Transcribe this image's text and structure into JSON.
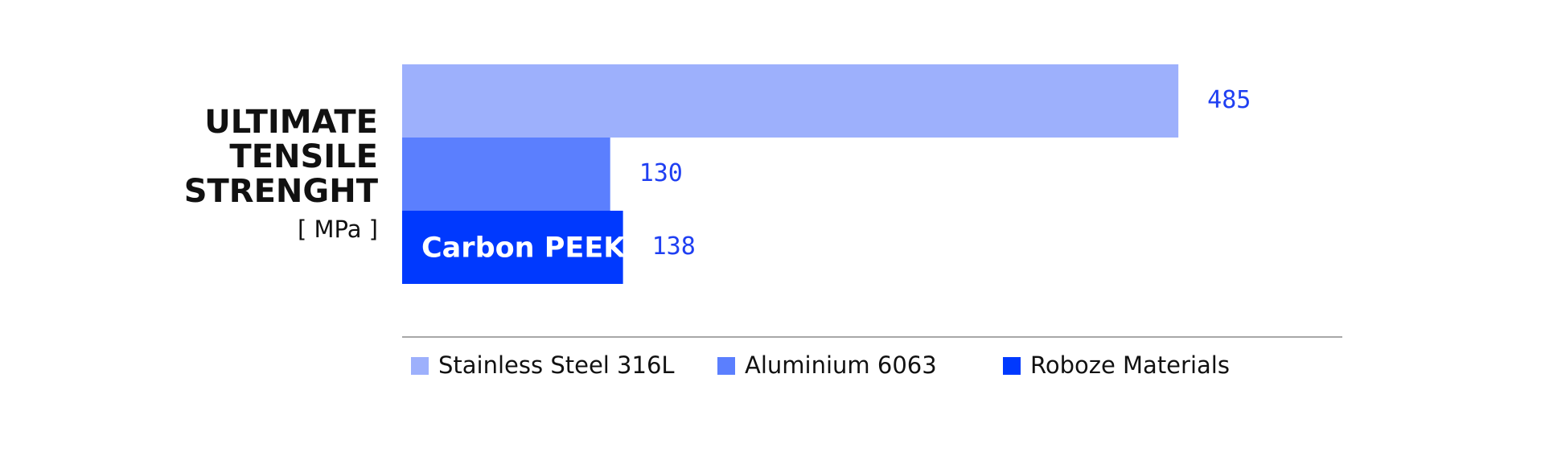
{
  "chart_data": {
    "type": "bar",
    "orientation": "horizontal",
    "title": [
      "ULTIMATE",
      "TENSILE",
      "STRENGHT"
    ],
    "unit": "[ MPa ]",
    "series": [
      {
        "name": "Stainless Steel 316L",
        "color": "#9db0fc",
        "values": [
          485
        ]
      },
      {
        "name": "Aluminium 6063",
        "color": "#5b7ffe",
        "values": [
          130
        ]
      },
      {
        "name": "Roboze Materials",
        "color": "#0039fe",
        "values": [
          138
        ],
        "label": "Carbon PEEK"
      }
    ]
  }
}
